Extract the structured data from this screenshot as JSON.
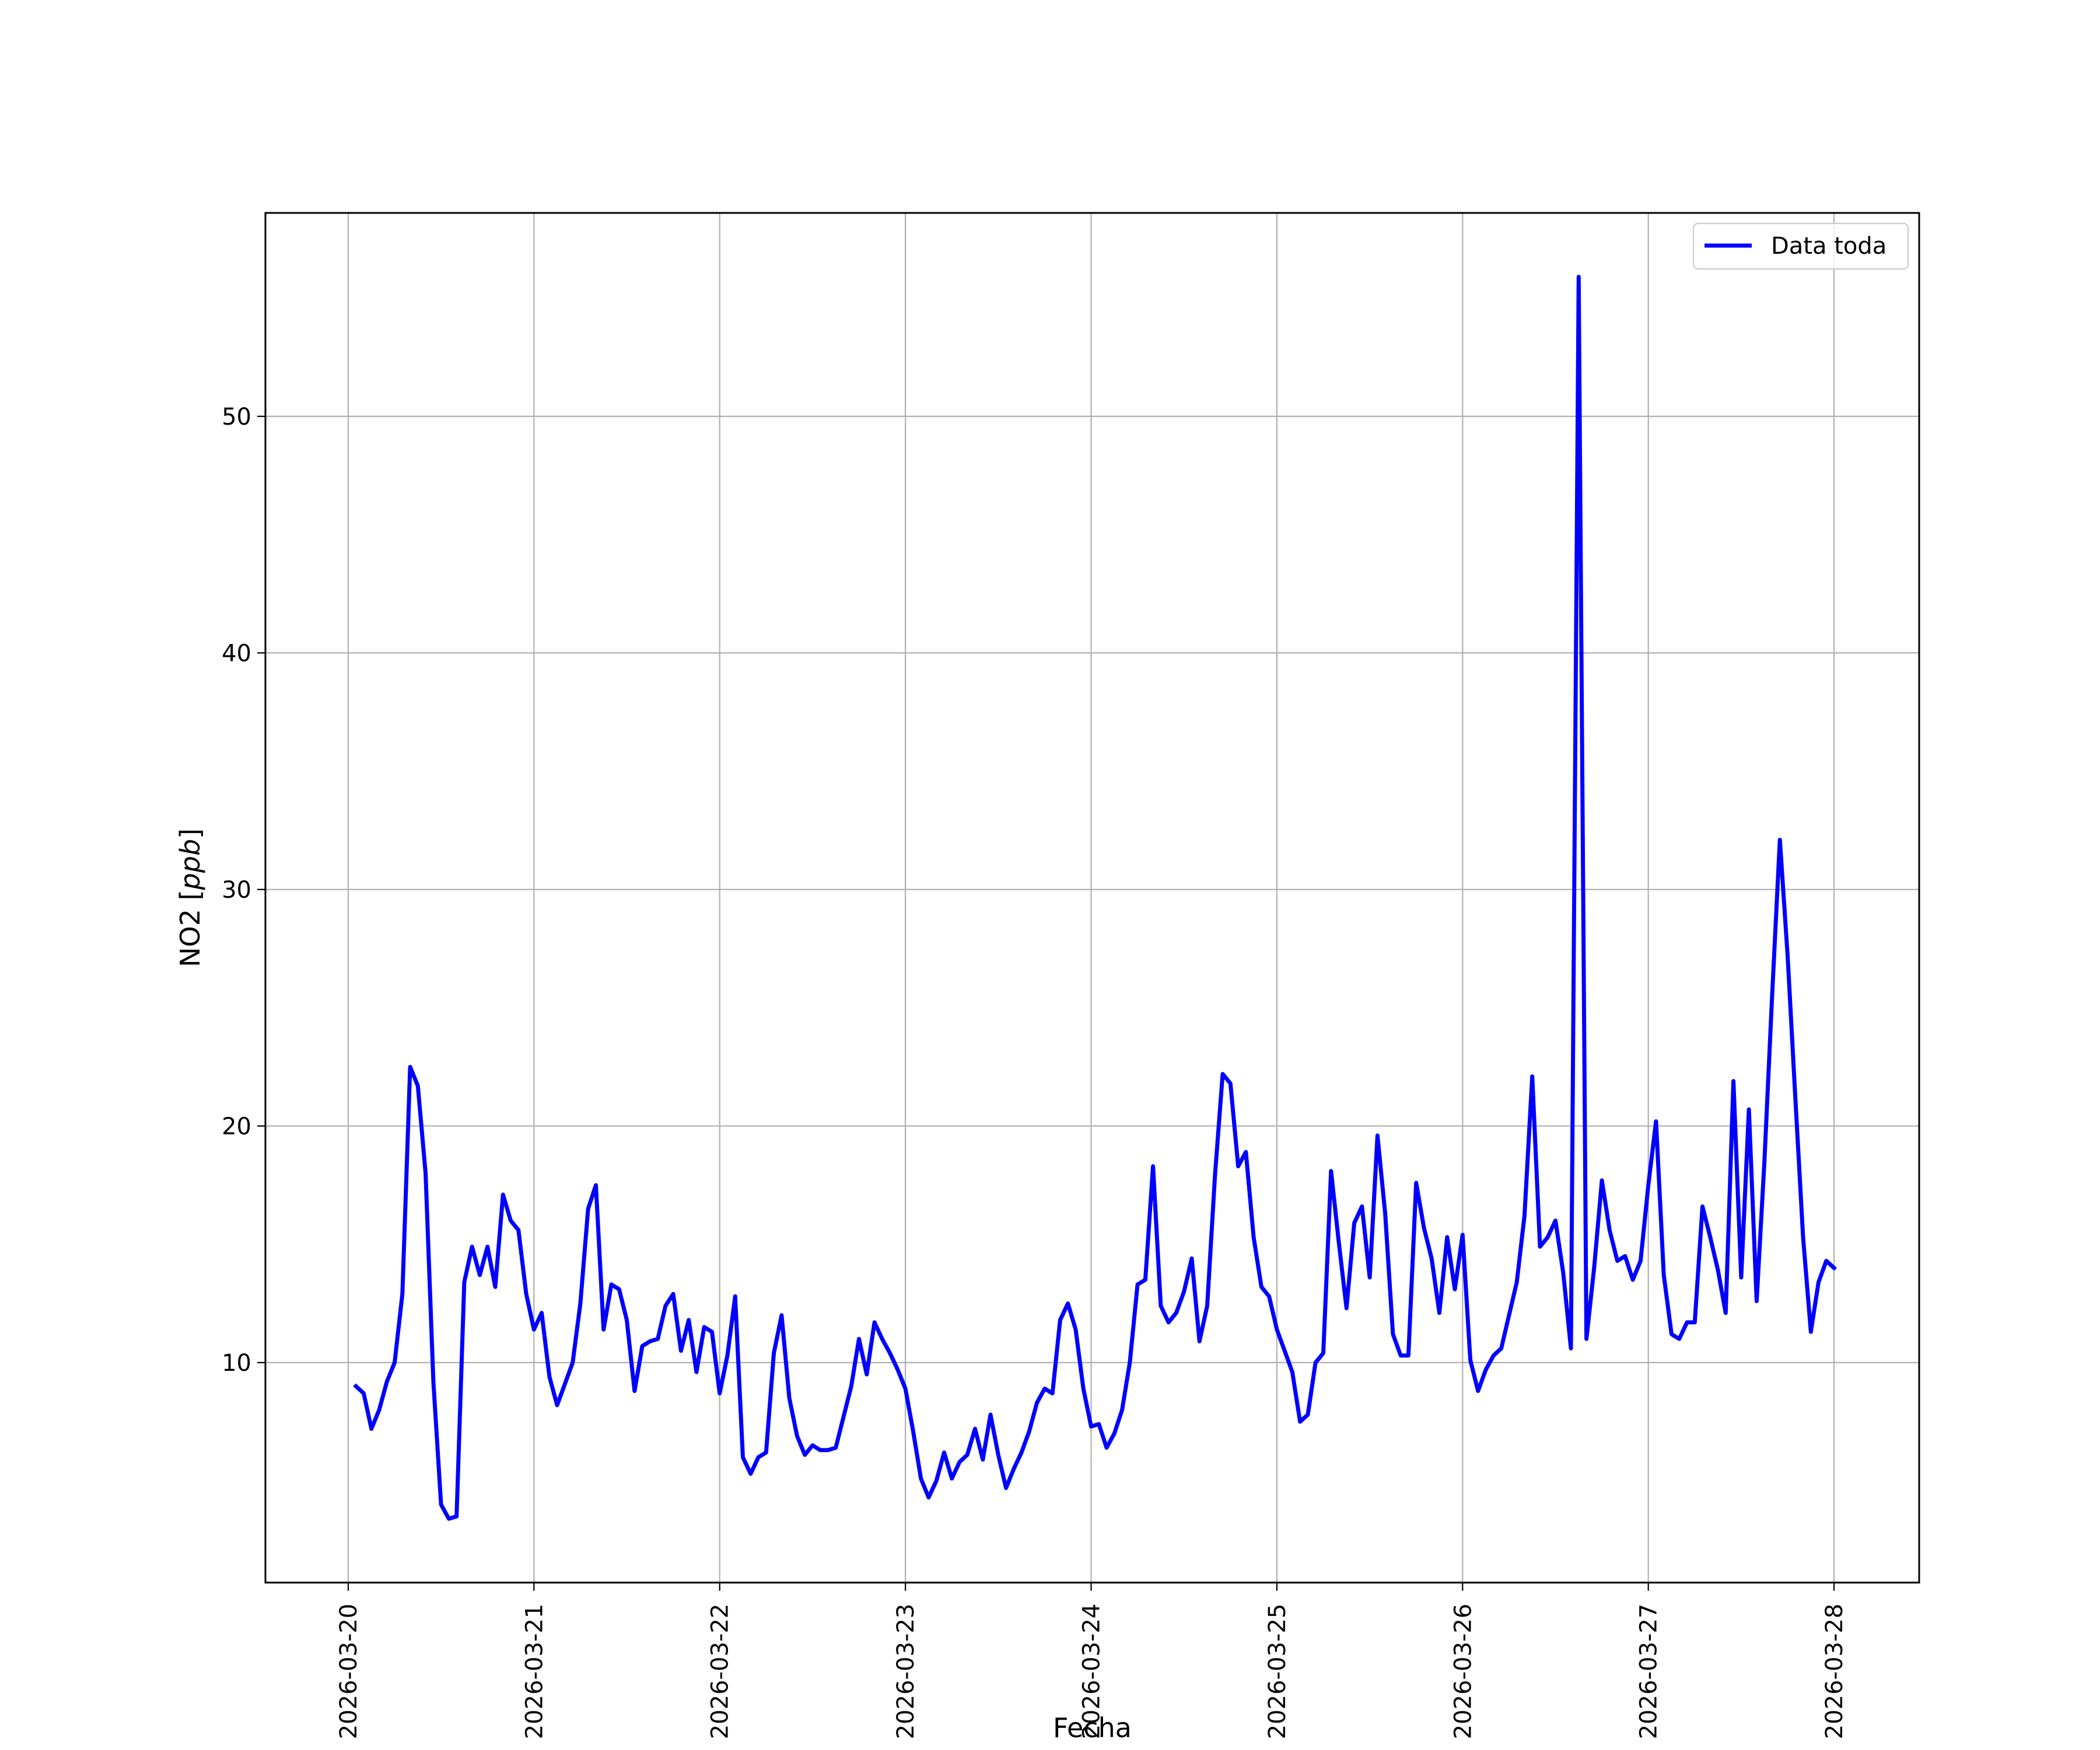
{
  "chart_data": {
    "type": "line",
    "xlabel": "Fecha",
    "ylabel": "NO2 [ppb]",
    "ylabel_prefix": "NO2 [",
    "ylabel_unit": "ppb",
    "ylabel_suffix": "]",
    "x_ticks": [
      "2026-03-20",
      "2026-03-21",
      "2026-03-22",
      "2026-03-23",
      "2026-03-24",
      "2026-03-25",
      "2026-03-26",
      "2026-03-27",
      "2026-03-28"
    ],
    "y_ticks": [
      10,
      20,
      30,
      40,
      50
    ],
    "xlim": [
      "2026-03-19 13:18",
      "2026-03-28 11:00"
    ],
    "ylim": [
      0.7,
      58.6
    ],
    "grid": true,
    "legend_position": "top-right",
    "series": [
      {
        "name": "Data toda",
        "color": "#0000ff",
        "x": [
          "2026-03-20 01:00",
          "2026-03-20 02:00",
          "2026-03-20 03:00",
          "2026-03-20 04:00",
          "2026-03-20 05:00",
          "2026-03-20 06:00",
          "2026-03-20 07:00",
          "2026-03-20 08:00",
          "2026-03-20 09:00",
          "2026-03-20 10:00",
          "2026-03-20 11:00",
          "2026-03-20 12:00",
          "2026-03-20 13:00",
          "2026-03-20 14:00",
          "2026-03-20 15:00",
          "2026-03-20 16:00",
          "2026-03-20 17:00",
          "2026-03-20 18:00",
          "2026-03-20 19:00",
          "2026-03-20 20:00",
          "2026-03-20 21:00",
          "2026-03-20 22:00",
          "2026-03-20 23:00",
          "2026-03-21 00:00",
          "2026-03-21 01:00",
          "2026-03-21 02:00",
          "2026-03-21 03:00",
          "2026-03-21 04:00",
          "2026-03-21 05:00",
          "2026-03-21 06:00",
          "2026-03-21 07:00",
          "2026-03-21 08:00",
          "2026-03-21 09:00",
          "2026-03-21 10:00",
          "2026-03-21 11:00",
          "2026-03-21 12:00",
          "2026-03-21 13:00",
          "2026-03-21 14:00",
          "2026-03-21 15:00",
          "2026-03-21 16:00",
          "2026-03-21 17:00",
          "2026-03-21 18:00",
          "2026-03-21 19:00",
          "2026-03-21 20:00",
          "2026-03-21 21:00",
          "2026-03-21 22:00",
          "2026-03-21 23:00",
          "2026-03-22 00:00",
          "2026-03-22 01:00",
          "2026-03-22 02:00",
          "2026-03-22 03:00",
          "2026-03-22 04:00",
          "2026-03-22 05:00",
          "2026-03-22 06:00",
          "2026-03-22 07:00",
          "2026-03-22 08:00",
          "2026-03-22 09:00",
          "2026-03-22 10:00",
          "2026-03-22 11:00",
          "2026-03-22 12:00",
          "2026-03-22 13:00",
          "2026-03-22 14:00",
          "2026-03-22 15:00",
          "2026-03-22 16:00",
          "2026-03-22 17:00",
          "2026-03-22 18:00",
          "2026-03-22 19:00",
          "2026-03-22 20:00",
          "2026-03-22 21:00",
          "2026-03-22 22:00",
          "2026-03-22 23:00",
          "2026-03-23 00:00",
          "2026-03-23 01:00",
          "2026-03-23 02:00",
          "2026-03-23 03:00",
          "2026-03-23 04:00",
          "2026-03-23 05:00",
          "2026-03-23 06:00",
          "2026-03-23 07:00",
          "2026-03-23 08:00",
          "2026-03-23 09:00",
          "2026-03-23 10:00",
          "2026-03-23 11:00",
          "2026-03-23 12:00",
          "2026-03-23 13:00",
          "2026-03-23 14:00",
          "2026-03-23 15:00",
          "2026-03-23 16:00",
          "2026-03-23 17:00",
          "2026-03-23 18:00",
          "2026-03-23 19:00",
          "2026-03-23 20:00",
          "2026-03-23 21:00",
          "2026-03-23 22:00",
          "2026-03-23 23:00",
          "2026-03-24 00:00",
          "2026-03-24 01:00",
          "2026-03-24 02:00",
          "2026-03-24 03:00",
          "2026-03-24 04:00",
          "2026-03-24 05:00",
          "2026-03-24 06:00",
          "2026-03-24 07:00",
          "2026-03-24 08:00",
          "2026-03-24 09:00",
          "2026-03-24 10:00",
          "2026-03-24 11:00",
          "2026-03-24 12:00",
          "2026-03-24 13:00",
          "2026-03-24 14:00",
          "2026-03-24 15:00",
          "2026-03-24 16:00",
          "2026-03-24 17:00",
          "2026-03-24 18:00",
          "2026-03-24 19:00",
          "2026-03-24 20:00",
          "2026-03-24 21:00",
          "2026-03-24 22:00",
          "2026-03-24 23:00",
          "2026-03-25 00:00",
          "2026-03-25 01:00",
          "2026-03-25 02:00",
          "2026-03-25 03:00",
          "2026-03-25 04:00",
          "2026-03-25 05:00",
          "2026-03-25 06:00",
          "2026-03-25 07:00",
          "2026-03-25 08:00",
          "2026-03-25 09:00",
          "2026-03-25 10:00",
          "2026-03-25 11:00",
          "2026-03-25 12:00",
          "2026-03-25 13:00",
          "2026-03-25 14:00",
          "2026-03-25 15:00",
          "2026-03-25 16:00",
          "2026-03-25 17:00",
          "2026-03-25 18:00",
          "2026-03-25 19:00",
          "2026-03-25 20:00",
          "2026-03-25 21:00",
          "2026-03-25 22:00",
          "2026-03-25 23:00",
          "2026-03-26 00:00",
          "2026-03-26 01:00",
          "2026-03-26 02:00",
          "2026-03-26 03:00",
          "2026-03-26 04:00",
          "2026-03-26 05:00",
          "2026-03-26 06:00",
          "2026-03-26 07:00",
          "2026-03-26 08:00",
          "2026-03-26 09:00",
          "2026-03-26 10:00",
          "2026-03-26 11:00",
          "2026-03-26 12:00",
          "2026-03-26 13:00",
          "2026-03-26 14:00",
          "2026-03-26 15:00",
          "2026-03-26 16:00",
          "2026-03-26 17:00",
          "2026-03-26 18:00",
          "2026-03-26 19:00",
          "2026-03-26 20:00",
          "2026-03-26 21:00",
          "2026-03-26 22:00",
          "2026-03-26 23:00",
          "2026-03-27 00:00",
          "2026-03-27 01:00",
          "2026-03-27 02:00",
          "2026-03-27 03:00",
          "2026-03-27 04:00",
          "2026-03-27 05:00",
          "2026-03-27 06:00",
          "2026-03-27 07:00",
          "2026-03-27 08:00",
          "2026-03-27 09:00",
          "2026-03-27 10:00",
          "2026-03-27 11:00",
          "2026-03-27 12:00",
          "2026-03-27 13:00",
          "2026-03-27 14:00",
          "2026-03-27 15:00",
          "2026-03-27 16:00",
          "2026-03-27 17:00",
          "2026-03-27 18:00",
          "2026-03-27 19:00",
          "2026-03-27 20:00",
          "2026-03-27 21:00",
          "2026-03-27 22:00",
          "2026-03-27 23:00",
          "2026-03-28 00:00"
        ],
        "y": [
          9.0,
          8.7,
          7.2,
          8.0,
          9.2,
          10.0,
          12.9,
          22.5,
          21.7,
          18.0,
          9.2,
          4.0,
          3.4,
          3.5,
          13.4,
          14.9,
          13.7,
          14.9,
          13.2,
          17.1,
          16.0,
          15.6,
          12.9,
          11.4,
          12.1,
          9.4,
          8.2,
          9.1,
          10.0,
          12.5,
          16.5,
          17.5,
          11.4,
          13.3,
          13.1,
          11.8,
          8.8,
          10.7,
          10.9,
          11.0,
          12.4,
          12.9,
          10.5,
          11.8,
          9.6,
          11.5,
          11.3,
          8.7,
          10.3,
          12.8,
          6.0,
          5.3,
          6.0,
          6.2,
          10.4,
          12.0,
          8.5,
          6.9,
          6.1,
          6.5,
          6.3,
          6.3,
          6.4,
          7.7,
          9.0,
          11.0,
          9.5,
          11.7,
          11.0,
          10.4,
          9.7,
          8.9,
          7.1,
          5.1,
          4.3,
          5.0,
          6.2,
          5.1,
          5.8,
          6.1,
          7.2,
          5.9,
          7.8,
          6.1,
          4.7,
          5.5,
          6.2,
          7.1,
          8.3,
          8.9,
          8.7,
          11.8,
          12.5,
          11.4,
          8.9,
          7.3,
          7.4,
          6.4,
          7.0,
          8.0,
          10.0,
          13.3,
          13.5,
          18.3,
          12.4,
          11.7,
          12.1,
          13.0,
          14.4,
          10.9,
          12.4,
          17.9,
          22.2,
          21.8,
          18.3,
          18.9,
          15.3,
          13.2,
          12.8,
          11.4,
          10.5,
          9.6,
          7.5,
          7.8,
          10.0,
          10.4,
          18.1,
          15.1,
          12.3,
          15.9,
          16.6,
          13.6,
          19.6,
          16.3,
          11.2,
          10.3,
          10.3,
          17.6,
          15.7,
          14.4,
          12.1,
          15.3,
          13.1,
          15.4,
          10.1,
          8.8,
          9.7,
          10.3,
          10.6,
          12.0,
          13.4,
          16.2,
          22.1,
          14.9,
          15.3,
          16.0,
          13.8,
          10.6,
          55.9,
          11.0,
          14.0,
          17.7,
          15.6,
          14.3,
          14.5,
          13.5,
          14.3,
          17.5,
          20.2,
          13.7,
          11.2,
          11.0,
          11.7,
          11.7,
          16.6,
          15.3,
          13.9,
          12.1,
          21.9,
          13.6,
          20.7,
          12.6,
          18.5,
          25.5,
          32.1,
          27.2,
          21.2,
          15.3,
          11.3,
          13.4,
          14.3,
          14.0
        ]
      }
    ]
  }
}
